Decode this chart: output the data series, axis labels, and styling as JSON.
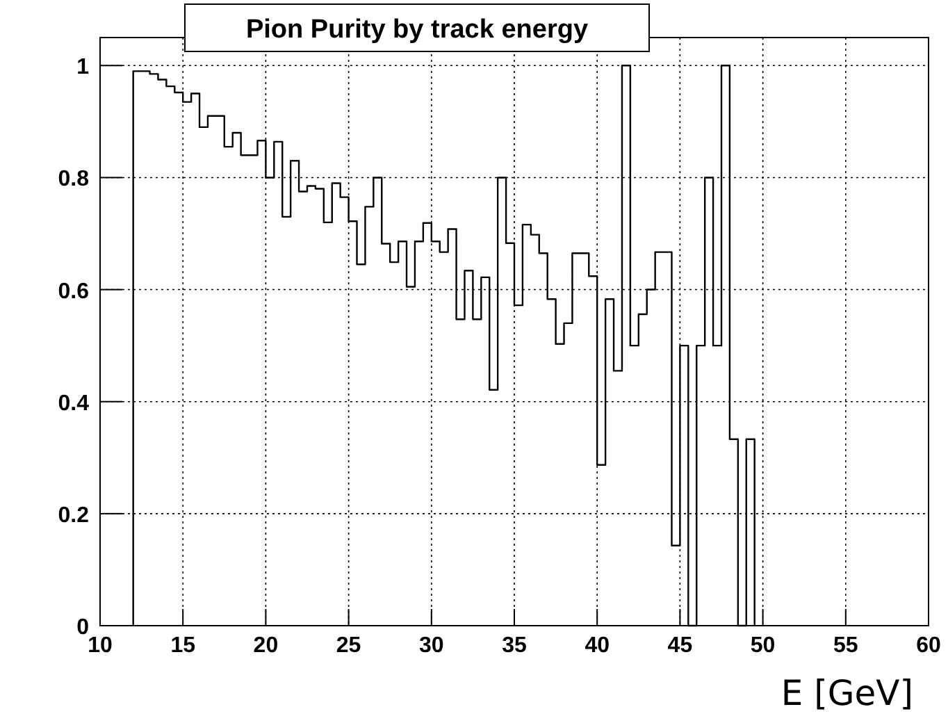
{
  "chart_data": {
    "type": "histogram",
    "title": "Pion Purity by track energy",
    "xlabel": "E [GeV]",
    "bins": [
      12,
      12.5,
      13,
      13.5,
      14,
      14.5,
      15,
      15.5,
      16,
      16.5,
      17,
      17.5,
      18,
      18.5,
      19,
      19.5,
      20,
      20.5,
      21,
      21.5,
      22,
      22.5,
      23,
      23.5,
      24,
      24.5,
      25,
      25.5,
      26,
      26.5,
      27,
      27.5,
      28,
      28.5,
      29,
      29.5,
      30,
      30.5,
      31,
      31.5,
      32,
      32.5,
      33,
      33.5,
      34,
      34.5,
      35,
      35.5,
      36,
      36.5,
      37,
      37.5,
      38,
      38.5,
      39,
      39.5,
      40,
      40.5,
      41,
      41.5,
      42,
      42.5,
      43,
      43.5,
      44,
      44.5,
      45,
      45.5,
      46,
      46.5,
      47,
      47.5,
      48,
      48.5,
      49,
      49.5
    ],
    "values": [
      0.99,
      0.99,
      0.985,
      0.975,
      0.963,
      0.952,
      0.935,
      0.95,
      0.89,
      0.91,
      0.91,
      0.855,
      0.88,
      0.84,
      0.84,
      0.866,
      0.8,
      0.864,
      0.73,
      0.83,
      0.775,
      0.785,
      0.78,
      0.72,
      0.79,
      0.765,
      0.722,
      0.645,
      0.748,
      0.8,
      0.682,
      0.649,
      0.686,
      0.605,
      0.686,
      0.719,
      0.686,
      0.667,
      0.708,
      0.547,
      0.634,
      0.547,
      0.622,
      0.421,
      0.8,
      0.683,
      0.572,
      0.716,
      0.698,
      0.665,
      0.583,
      0.503,
      0.54,
      0.665,
      0.665,
      0.624,
      0.287,
      0.583,
      0.455,
      1.0,
      0.5,
      0.556,
      0.6,
      0.667,
      0.667,
      0.143,
      0.5,
      0,
      0.5,
      0.8,
      0.5,
      1.0,
      0.333,
      0,
      0.333
    ],
    "color": "#000000",
    "xlim": [
      10,
      60
    ],
    "xticks": [
      10,
      15,
      20,
      25,
      30,
      35,
      40,
      45,
      50,
      55,
      60
    ],
    "ylim": [
      0,
      1.05
    ],
    "yticks": [
      0,
      0.2,
      0.4,
      0.6,
      0.8,
      1
    ],
    "grid": true
  }
}
